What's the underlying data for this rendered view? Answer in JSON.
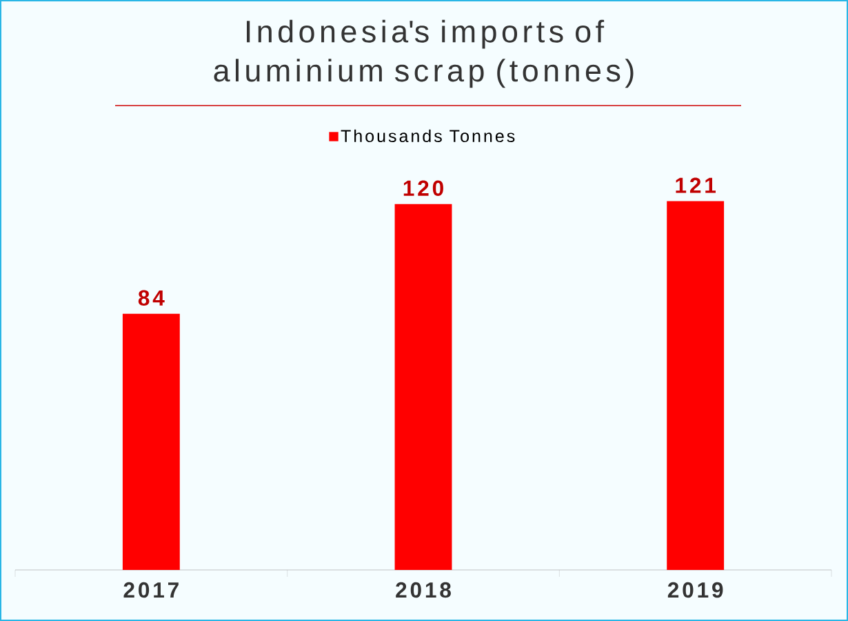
{
  "chart_data": {
    "type": "bar",
    "title": "Indonesia's imports of aluminium scrap (tonnes)",
    "categories": [
      "2017",
      "2018",
      "2019"
    ],
    "series": [
      {
        "name": "Thousands Tonnes",
        "color": "#ff0000",
        "values": [
          84,
          120,
          121
        ]
      }
    ],
    "data_labels": true,
    "legend": "top"
  }
}
